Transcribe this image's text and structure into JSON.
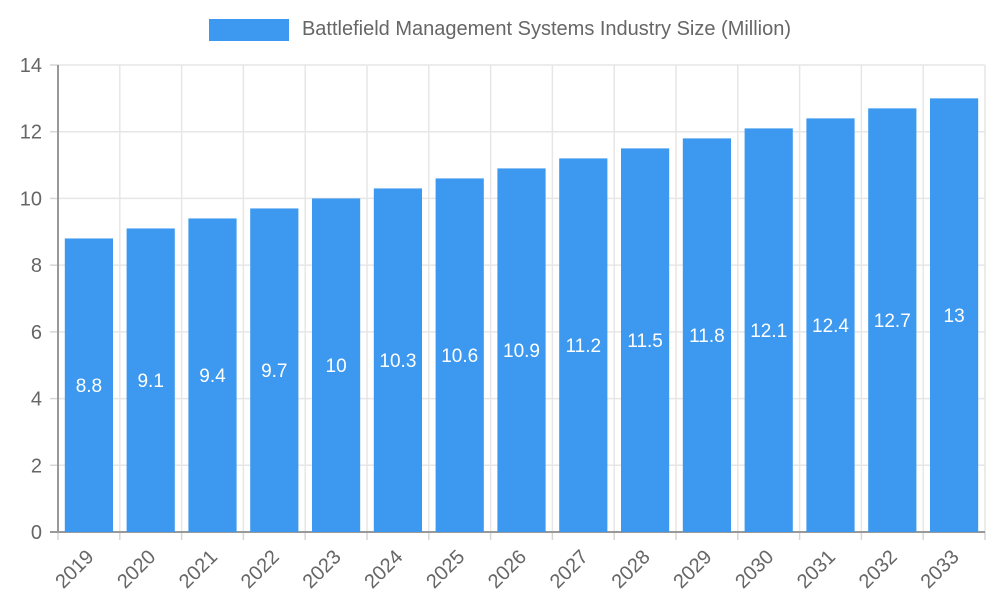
{
  "legend": {
    "label": "Battlefield Management Systems Industry Size (Million)"
  },
  "chart_data": {
    "type": "bar",
    "title": "Battlefield Management Systems Industry Size (Million)",
    "categories": [
      "2019",
      "2020",
      "2021",
      "2022",
      "2023",
      "2024",
      "2025",
      "2026",
      "2027",
      "2028",
      "2029",
      "2030",
      "2031",
      "2032",
      "2033"
    ],
    "values": [
      8.8,
      9.1,
      9.4,
      9.7,
      10,
      10.3,
      10.6,
      10.9,
      11.2,
      11.5,
      11.8,
      12.1,
      12.4,
      12.7,
      13
    ],
    "value_labels": [
      "8.8",
      "9.1",
      "9.4",
      "9.7",
      "10",
      "10.3",
      "10.6",
      "10.9",
      "11.2",
      "11.5",
      "11.8",
      "12.1",
      "12.4",
      "12.7",
      "13"
    ],
    "xlabel": "",
    "ylabel": "",
    "ylim": [
      0,
      14
    ],
    "yticks": [
      0,
      2,
      4,
      6,
      8,
      10,
      12,
      14
    ],
    "grid": true,
    "legend_position": "top-center",
    "colors": {
      "bar": "#3d99f0",
      "value_label": "#ffffff",
      "axis_text": "#666666",
      "grid": "#e6e6e6",
      "tick": "#d6d6d6",
      "axis_line": "#999999",
      "background": "#ffffff"
    }
  }
}
